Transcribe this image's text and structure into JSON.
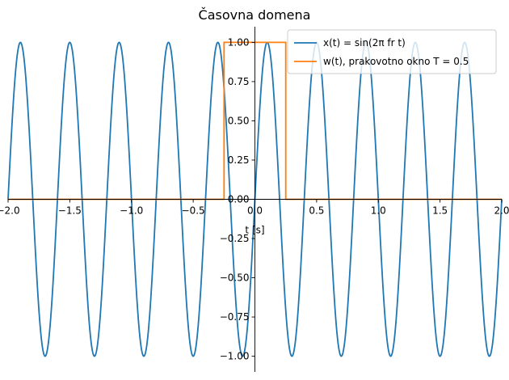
{
  "chart_data": {
    "type": "line",
    "title": "Časovna domena",
    "xlabel": "t [s]",
    "ylabel": "",
    "xlim": [
      -2.0,
      2.0
    ],
    "ylim": [
      -1.1,
      1.1
    ],
    "xticks": [
      -2.0,
      -1.5,
      -1.0,
      -0.5,
      0.0,
      0.5,
      1.0,
      1.5,
      2.0
    ],
    "xtick_labels": [
      "−2.0",
      "−1.5",
      "−1.0",
      "−0.5",
      "0.0",
      "0.5",
      "1.0",
      "1.5",
      "2.0"
    ],
    "yticks": [
      -1.0,
      -0.75,
      -0.5,
      -0.25,
      0.0,
      0.25,
      0.5,
      0.75,
      1.0
    ],
    "ytick_labels": [
      "−1.00",
      "−0.75",
      "−0.50",
      "−0.25",
      "0.00",
      "0.25",
      "0.50",
      "0.75",
      "1.00"
    ],
    "grid": false,
    "legend_position": "top-right",
    "series": [
      {
        "name": "x(t) = sin(2π fr t)",
        "function": "sin(2*pi*fr*t)",
        "fr": 2.5,
        "x_range": [
          -2.0,
          2.0
        ],
        "color": "#1f77b4"
      },
      {
        "name": "w(t), prakovotno okno T = 0.5",
        "function": "rectangular window",
        "window_width": 0.5,
        "x": [
          -2.0,
          -0.25,
          -0.25,
          0.25,
          0.25,
          2.0
        ],
        "values": [
          0.0,
          0.0,
          1.0,
          1.0,
          0.0,
          0.0
        ],
        "color": "#ff7f0e"
      }
    ]
  }
}
